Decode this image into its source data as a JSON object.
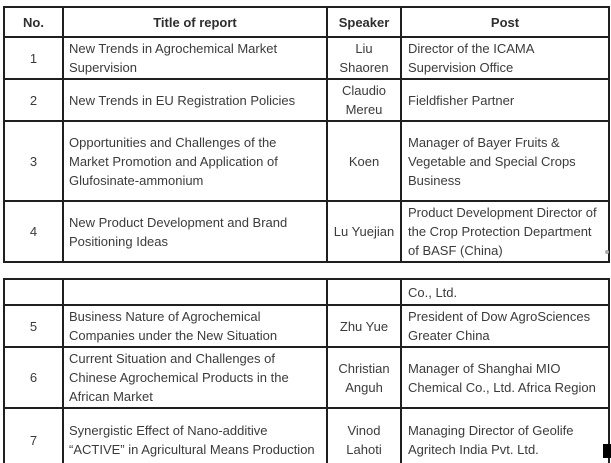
{
  "page": {
    "background_color": "#ffffff",
    "text_color": "#3b3b3b",
    "border_color": "#1f1f1f"
  },
  "table1": {
    "headers": [
      "No.",
      "Title of report",
      "Speaker",
      "Post"
    ],
    "rows": [
      {
        "no": "1",
        "title": "New Trends in Agrochemical Market Supervision",
        "speaker": "Liu Shaoren",
        "post": "Director of the ICAMA Supervision Office"
      },
      {
        "no": "2",
        "title": "New Trends in EU Registration Policies",
        "speaker": "Claudio Mereu",
        "post": "Fieldfisher Partner"
      },
      {
        "no": "3",
        "title": "Opportunities and Challenges of the Market Promotion and Application of Glufosinate-ammonium",
        "speaker": "Koen",
        "post": "Manager of Bayer Fruits & Vegetable and Special Crops Business"
      },
      {
        "no": "4",
        "title": "New Product Development and Brand Positioning Ideas",
        "speaker": "Lu Yuejian",
        "post": "Product Development Director of the Crop Protection Department of BASF (China)"
      }
    ]
  },
  "table2": {
    "rows": [
      {
        "no": "",
        "title": "",
        "speaker": "",
        "post": "Co., Ltd."
      },
      {
        "no": "5",
        "title": "Business Nature of Agrochemical Companies under the New Situation",
        "speaker": "Zhu Yue",
        "post": "President of Dow AgroSciences Greater China"
      },
      {
        "no": "6",
        "title": "Current Situation and Challenges of Chinese Agrochemical Products in the African Market",
        "speaker": "Christian Anguh",
        "post": "Manager of Shanghai MIO Chemical Co., Ltd. Africa Region"
      },
      {
        "no": "7",
        "title": "Synergistic Effect of Nano-additive “ACTIVE” in Agricultural Means Production",
        "speaker": "Vinod Lahoti",
        "post": "Managing Director of Geolife Agritech India Pvt. Ltd."
      }
    ]
  }
}
